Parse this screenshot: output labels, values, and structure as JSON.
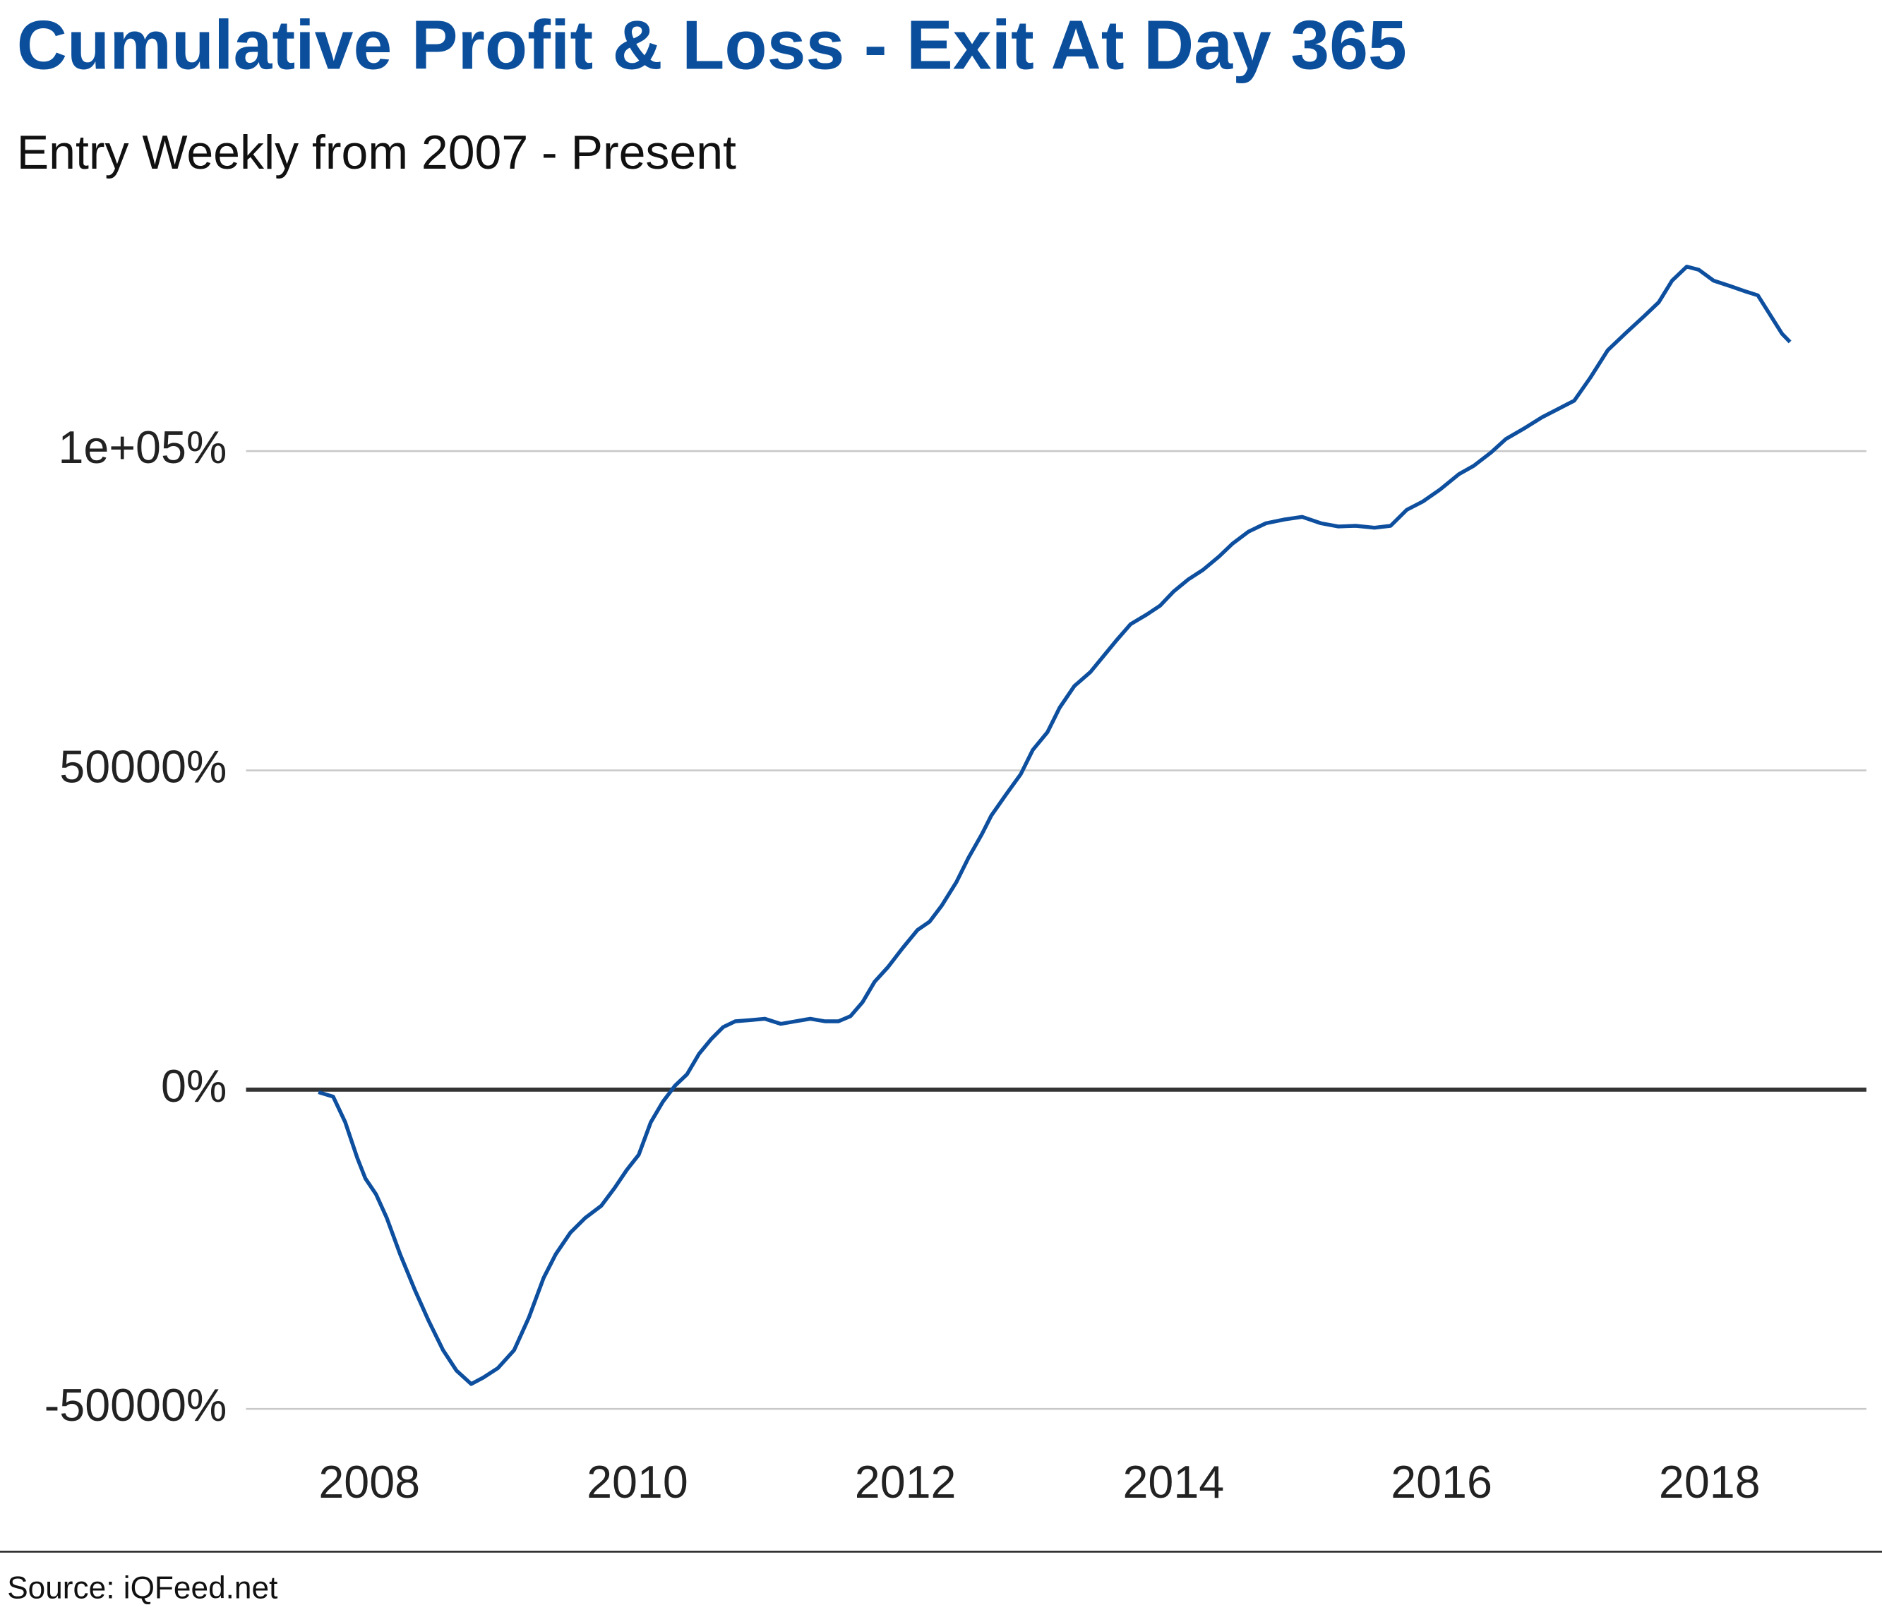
{
  "chart_data": {
    "type": "line",
    "title": "Cumulative Profit & Loss - Exit At Day 365",
    "subtitle": "Entry Weekly from 2007 - Present",
    "source": "Source: iQFeed.net",
    "grid": true,
    "reference_line": 0,
    "xlim": [
      2007.08,
      2019.17
    ],
    "xticks": [
      2008,
      2010,
      2012,
      2014,
      2016,
      2018
    ],
    "ylim": [
      -55000,
      134000
    ],
    "yticks": [
      {
        "value": -50000,
        "label": "-50000%"
      },
      {
        "value": 0,
        "label": "0%"
      },
      {
        "value": 50000,
        "label": "50000%"
      },
      {
        "value": 100000,
        "label": "1e+05%"
      }
    ],
    "x": [
      2007.62,
      2007.73,
      2007.82,
      2007.91,
      2007.97,
      2008.05,
      2008.13,
      2008.23,
      2008.34,
      2008.44,
      2008.55,
      2008.65,
      2008.76,
      2008.85,
      2008.96,
      2009.08,
      2009.19,
      2009.3,
      2009.39,
      2009.5,
      2009.61,
      2009.73,
      2009.83,
      2009.92,
      2010.01,
      2010.1,
      2010.19,
      2010.28,
      2010.37,
      2010.46,
      2010.55,
      2010.64,
      2010.73,
      2010.85,
      2010.95,
      2011.07,
      2011.18,
      2011.29,
      2011.4,
      2011.5,
      2011.59,
      2011.68,
      2011.77,
      2011.87,
      2011.98,
      2012.09,
      2012.18,
      2012.27,
      2012.38,
      2012.47,
      2012.57,
      2012.64,
      2012.75,
      2012.86,
      2012.95,
      2013.06,
      2013.15,
      2013.26,
      2013.38,
      2013.47,
      2013.58,
      2013.68,
      2013.8,
      2013.9,
      2014.0,
      2014.11,
      2014.22,
      2014.34,
      2014.44,
      2014.56,
      2014.69,
      2014.83,
      2014.96,
      2015.1,
      2015.23,
      2015.36,
      2015.5,
      2015.62,
      2015.74,
      2015.86,
      2015.99,
      2016.13,
      2016.24,
      2016.37,
      2016.48,
      2016.62,
      2016.75,
      2016.87,
      2016.99,
      2017.11,
      2017.24,
      2017.38,
      2017.51,
      2017.62,
      2017.72,
      2017.83,
      2017.92,
      2018.03,
      2018.16,
      2018.27,
      2018.36,
      2018.45,
      2018.54,
      2018.6
    ],
    "series": [
      {
        "color": "#0d4f9e",
        "values": [
          -400,
          -1100,
          -5100,
          -10700,
          -13900,
          -16400,
          -20100,
          -25800,
          -31400,
          -36100,
          -40800,
          -44000,
          -46100,
          -45100,
          -43600,
          -40800,
          -35700,
          -29500,
          -25800,
          -22400,
          -20100,
          -18200,
          -15400,
          -12600,
          -10200,
          -5100,
          -1900,
          600,
          2400,
          5600,
          7900,
          9800,
          10700,
          10900,
          11100,
          10300,
          10700,
          11100,
          10700,
          10700,
          11500,
          13700,
          16900,
          19200,
          22200,
          25000,
          26300,
          28800,
          32500,
          36300,
          40000,
          42900,
          46200,
          49400,
          53200,
          56000,
          59800,
          63200,
          65400,
          67700,
          70500,
          72900,
          74400,
          75800,
          78000,
          79900,
          81400,
          83500,
          85500,
          87400,
          88700,
          89300,
          89700,
          88700,
          88200,
          88300,
          88000,
          88300,
          90800,
          92100,
          94000,
          96400,
          97700,
          99800,
          101900,
          103600,
          105300,
          106600,
          107900,
          111500,
          115800,
          118600,
          121100,
          123300,
          126700,
          128900,
          128400,
          126700,
          125800,
          125000,
          124400,
          121400,
          118400,
          117100
        ]
      }
    ]
  }
}
